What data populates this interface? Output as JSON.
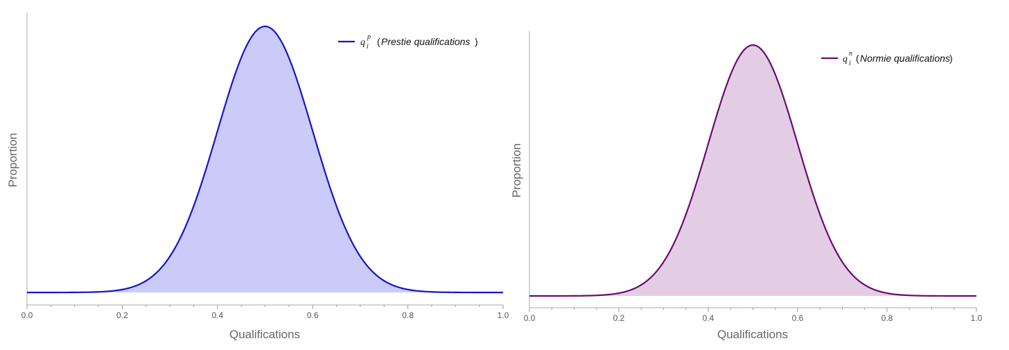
{
  "chart_data": [
    {
      "type": "area",
      "xlabel": "Qualifications",
      "ylabel": "Proportion",
      "xlim": [
        0.0,
        1.0
      ],
      "xticks": [
        "0.0",
        "0.2",
        "0.4",
        "0.6",
        "0.8",
        "1.0"
      ],
      "yticks_shown": false,
      "grid": false,
      "legend_position": "top-right",
      "series": [
        {
          "name": "Prestie qualifications",
          "legend_symbol": "q",
          "legend_sub": "i",
          "legend_sup": "p",
          "distribution": "normal",
          "mean": 0.5,
          "sd": 0.1,
          "line_color": "#1414c8",
          "fill_color": "#cbcbfa"
        }
      ]
    },
    {
      "type": "area",
      "xlabel": "Qualifications",
      "ylabel": "Proportion",
      "xlim": [
        0.0,
        1.0
      ],
      "xticks": [
        "0.0",
        "0.2",
        "0.4",
        "0.6",
        "0.8",
        "1.0"
      ],
      "yticks_shown": false,
      "grid": false,
      "legend_position": "top-right",
      "series": [
        {
          "name": "Normie qualifications",
          "legend_symbol": "q",
          "legend_sub": "i",
          "legend_sup": "n",
          "distribution": "normal",
          "mean": 0.5,
          "sd": 0.1,
          "line_color": "#6a0a6e",
          "fill_color": "#e3cde5"
        }
      ]
    }
  ]
}
